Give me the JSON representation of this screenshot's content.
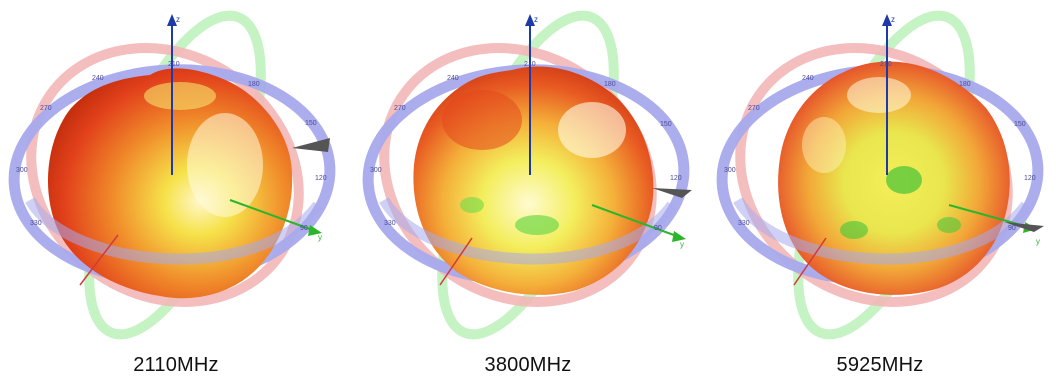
{
  "panels": [
    {
      "caption": "2110MHz",
      "ring_ticks": [
        "210",
        "240",
        "180",
        "150",
        "270",
        "120",
        "300",
        "90",
        "330"
      ],
      "axis_labels": {
        "z": "z",
        "y": "y"
      }
    },
    {
      "caption": "3800MHz",
      "ring_ticks": [
        "210",
        "240",
        "180",
        "150",
        "270",
        "120",
        "300",
        "90",
        "330"
      ],
      "axis_labels": {
        "z": "z",
        "y": "y"
      }
    },
    {
      "caption": "5925MHz",
      "ring_ticks": [
        "210",
        "240",
        "180",
        "150",
        "270",
        "120",
        "300",
        "90",
        "330"
      ],
      "axis_labels": {
        "z": "z",
        "y": "y"
      }
    }
  ],
  "colors": {
    "ring_blue": "#a7a9ec",
    "ring_red": "#f3b7b7",
    "ring_green": "#bff2bd",
    "pattern_red": "#e8451e",
    "pattern_orange": "#f39a2c",
    "pattern_yellow": "#f5ef5a",
    "pattern_green": "#5fcf3f",
    "axis_z": "#1e3aa8",
    "axis_y": "#2bb52b",
    "axis_x": "#d23a3a"
  }
}
